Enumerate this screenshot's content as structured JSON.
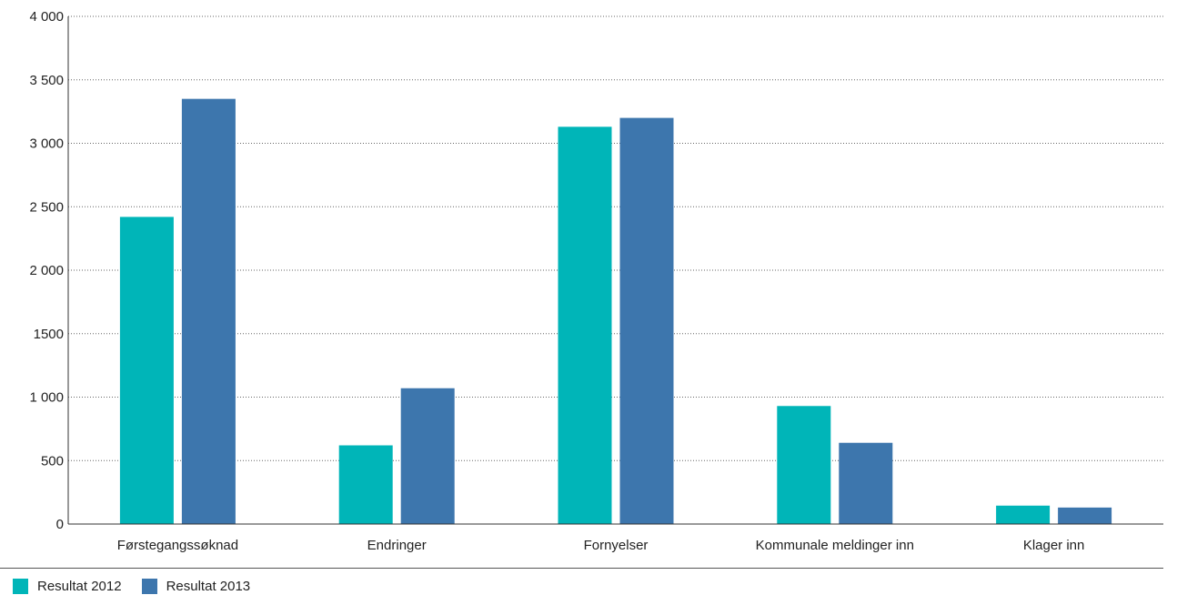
{
  "chart_data": {
    "type": "bar",
    "categories": [
      "Førstegangssøknad",
      "Endringer",
      "Fornyelser",
      "Kommunale meldinger inn",
      "Klager inn"
    ],
    "series": [
      {
        "name": "Resultat 2012",
        "color": "#00b5b8",
        "values": [
          2420,
          620,
          3130,
          930,
          145
        ]
      },
      {
        "name": "Resultat 2013",
        "color": "#3d76ad",
        "values": [
          3350,
          1070,
          3200,
          640,
          130
        ]
      }
    ],
    "yticks": [
      0,
      500,
      1000,
      1500,
      2000,
      2500,
      3000,
      3500,
      4000
    ],
    "ytick_labels": [
      "0",
      "500",
      "1 000",
      "1500",
      "2 000",
      "2 500",
      "3 000",
      "3 500",
      "4 000"
    ],
    "ylim": [
      0,
      4000
    ],
    "grid": "horizontal dotted",
    "legend_position": "bottom-left"
  }
}
